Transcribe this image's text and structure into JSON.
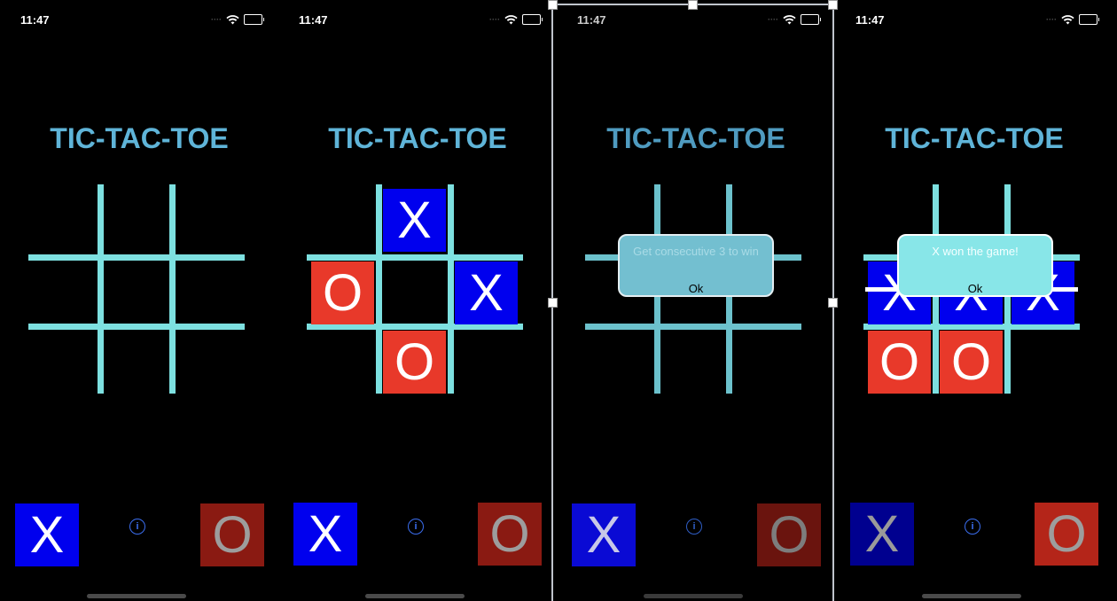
{
  "screens": [
    {
      "time": "11:47",
      "title": "TIC-TAC-TOE",
      "board": [
        "",
        "",
        "",
        "",
        "",
        "",
        "",
        "",
        ""
      ],
      "x_button": "X",
      "o_button": "O",
      "info": "i"
    },
    {
      "time": "11:47",
      "title": "TIC-TAC-TOE",
      "board": [
        "",
        "X",
        "",
        "O",
        "",
        "X",
        "",
        "O",
        ""
      ],
      "x_button": "X",
      "o_button": "O",
      "info": "i"
    },
    {
      "time": "11:47",
      "title": "TIC-TAC-TOE",
      "board": [
        "",
        "",
        "",
        "",
        "",
        "",
        "",
        "",
        ""
      ],
      "alert": {
        "message": "Get consecutive 3 to win",
        "ok": "Ok"
      },
      "x_button": "X",
      "o_button": "O",
      "info": "i"
    },
    {
      "time": "11:47",
      "title": "TIC-TAC-TOE",
      "board": [
        "",
        "",
        "",
        "X",
        "X",
        "X",
        "O",
        "O",
        ""
      ],
      "alert": {
        "message": "X won the game!",
        "ok": "Ok"
      },
      "x_button": "X",
      "o_button": "O",
      "info": "i"
    }
  ],
  "colors": {
    "background": "#000000",
    "title": "#5fb4d8",
    "grid": "#7de0e0",
    "x_cell": "#0000ee",
    "o_cell": "#e8392a",
    "alert_info": "#73bfd0",
    "alert_win": "#88e6e8"
  },
  "icons": [
    "wifi-icon",
    "battery-icon",
    "info-icon",
    "cellular-dots-icon"
  ]
}
